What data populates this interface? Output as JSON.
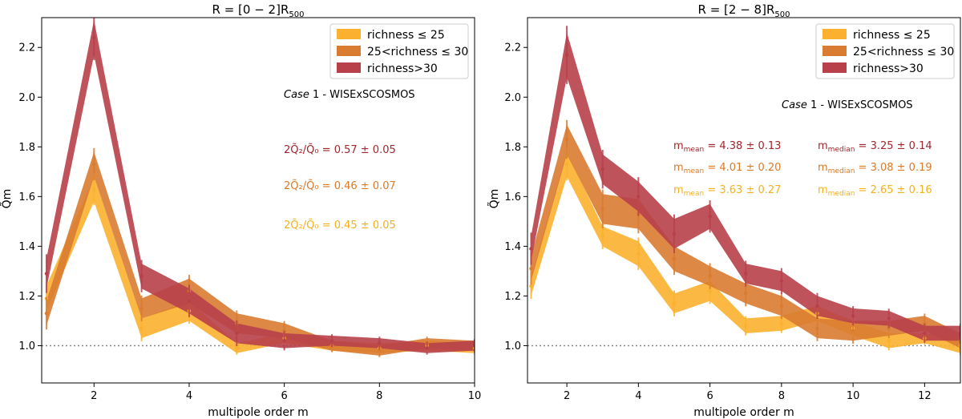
{
  "chart_data": [
    {
      "type": "area",
      "title": "R = [0 − 2]R",
      "title_sub": "500",
      "xlabel": "multipole order m",
      "ylabel": "Q̃m",
      "xlim": [
        0.9,
        10
      ],
      "ylim": [
        0.85,
        2.32
      ],
      "xticks": [
        2,
        4,
        6,
        8,
        10
      ],
      "yticks": [
        1.0,
        1.2,
        1.4,
        1.6,
        1.8,
        2.0,
        2.2
      ],
      "ytick_labels": [
        "1.0",
        "1.2",
        "1.4",
        "1.6",
        "1.8",
        "2.0",
        "2.2"
      ],
      "reference_line": 1.0,
      "legend_position": "top-right",
      "x": [
        1,
        2,
        3,
        4,
        5,
        6,
        7,
        8,
        9,
        10
      ],
      "series": [
        {
          "name": "richness ≤ 25",
          "color": "#fbb12f",
          "values": [
            1.19,
            1.63,
            1.07,
            1.14,
            0.99,
            1.03,
            1.0,
            0.99,
            1.0,
            0.99
          ],
          "err": [
            0.05,
            0.05,
            0.04,
            0.04,
            0.02,
            0.02,
            0.02,
            0.02,
            0.02,
            0.02
          ]
        },
        {
          "name": "25<richness ≤ 30",
          "color": "#d97b31",
          "values": [
            1.13,
            1.73,
            1.15,
            1.22,
            1.09,
            1.06,
            1.0,
            0.98,
            1.01,
            1.0
          ],
          "err": [
            0.05,
            0.05,
            0.04,
            0.05,
            0.04,
            0.03,
            0.02,
            0.02,
            0.02,
            0.02
          ]
        },
        {
          "name": "richness>30",
          "color": "#b8404a",
          "values": [
            1.29,
            2.24,
            1.28,
            1.18,
            1.05,
            1.02,
            1.02,
            1.01,
            0.99,
            1.0
          ],
          "err": [
            0.06,
            0.07,
            0.05,
            0.05,
            0.04,
            0.03,
            0.02,
            0.02,
            0.02,
            0.02
          ]
        }
      ],
      "case_annotation": {
        "case": "Case",
        "rest": " 1 - WISExSCOSMOS"
      },
      "annotations": [
        {
          "label": "2Q̃₂/Q̃₀",
          "value": " = 0.57 ± 0.05",
          "color": "#a3262d"
        },
        {
          "label": "2Q̃₂/Q̃₀",
          "value": " = 0.46 ± 0.07",
          "color": "#db7a27"
        },
        {
          "label": "2Q̃₂/Q̃₀",
          "value": " = 0.45 ± 0.05",
          "color": "#f4b11f"
        }
      ]
    },
    {
      "type": "area",
      "title": "R = [2 − 8]R",
      "title_sub": "500",
      "xlabel": "multipole order m",
      "ylabel": "Q̃m",
      "xlim": [
        0.9,
        13
      ],
      "ylim": [
        0.85,
        2.32
      ],
      "xticks": [
        2,
        4,
        6,
        8,
        10,
        12
      ],
      "yticks": [
        1.0,
        1.2,
        1.4,
        1.6,
        1.8,
        2.0,
        2.2
      ],
      "ytick_labels": [
        "1.0",
        "1.2",
        "1.4",
        "1.6",
        "1.8",
        "2.0",
        "2.2"
      ],
      "reference_line": 1.0,
      "legend_position": "top-right",
      "x": [
        1,
        2,
        3,
        4,
        5,
        6,
        7,
        8,
        9,
        10,
        11,
        12,
        13
      ],
      "series": [
        {
          "name": "richness ≤ 25",
          "color": "#fbb12f",
          "values": [
            1.24,
            1.73,
            1.44,
            1.37,
            1.17,
            1.22,
            1.08,
            1.09,
            1.13,
            1.07,
            1.02,
            1.03,
            1.0
          ],
          "err": [
            0.04,
            0.05,
            0.04,
            0.05,
            0.04,
            0.04,
            0.03,
            0.03,
            0.03,
            0.03,
            0.03,
            0.02,
            0.03
          ]
        },
        {
          "name": "25<richness ≤ 30",
          "color": "#d97b31",
          "values": [
            1.31,
            1.83,
            1.55,
            1.53,
            1.35,
            1.28,
            1.21,
            1.16,
            1.07,
            1.06,
            1.07,
            1.09,
            1.02
          ],
          "err": [
            0.05,
            0.06,
            0.06,
            0.06,
            0.05,
            0.04,
            0.04,
            0.04,
            0.04,
            0.04,
            0.03,
            0.03,
            0.03
          ]
        },
        {
          "name": "richness>30",
          "color": "#b8404a",
          "values": [
            1.39,
            2.17,
            1.71,
            1.6,
            1.45,
            1.52,
            1.29,
            1.26,
            1.16,
            1.12,
            1.11,
            1.05,
            1.05
          ],
          "err": [
            0.05,
            0.09,
            0.06,
            0.06,
            0.06,
            0.05,
            0.04,
            0.04,
            0.04,
            0.03,
            0.03,
            0.03,
            0.03
          ]
        }
      ],
      "case_annotation": {
        "case": "Case",
        "rest": " 1 - WISExSCOSMOS"
      },
      "annotations": [
        {
          "mean": "4.38 ± 0.13",
          "median": "3.25 ± 0.14",
          "color": "#a3262d"
        },
        {
          "mean": "4.01 ± 0.20",
          "median": "3.08 ± 0.19",
          "color": "#db7a27"
        },
        {
          "mean": "3.63 ± 0.27",
          "median": "2.65 ± 0.16",
          "color": "#f4b11f"
        }
      ],
      "mean_label": {
        "m": "m",
        "sub": "mean"
      },
      "median_label": {
        "m": "m",
        "sub": "median"
      }
    }
  ]
}
